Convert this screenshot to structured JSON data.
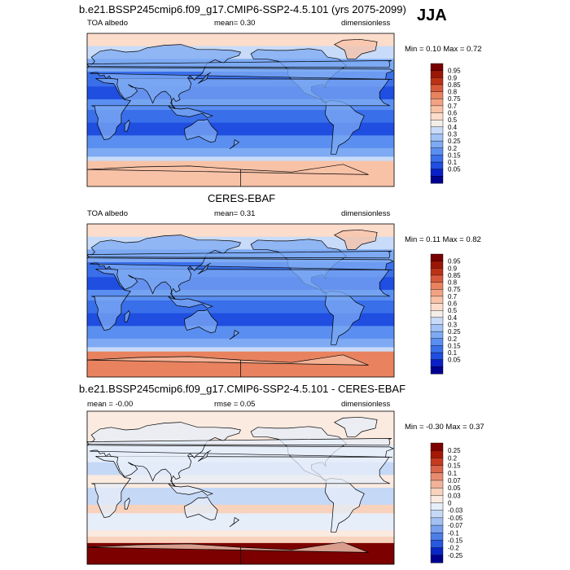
{
  "season": "JJA",
  "palettes": {
    "albedo": [
      "#00008f",
      "#0a1fc8",
      "#1f4ee0",
      "#3a6fea",
      "#5a8ef0",
      "#7eaaf3",
      "#a3c3f6",
      "#c8dbf8",
      "#f4eee8",
      "#fcdccb",
      "#f8c2a7",
      "#f2a283",
      "#e8825f",
      "#d65a3a",
      "#bc3216",
      "#9a1606",
      "#780000"
    ],
    "diff": [
      "#00008f",
      "#0a26c4",
      "#2858de",
      "#4c7ee6",
      "#78a0ec",
      "#a2c0f2",
      "#c5d8f6",
      "#e6eefa",
      "#faeae0",
      "#f8d2bc",
      "#f2b39a",
      "#e88c70",
      "#d96548",
      "#c63a20",
      "#a51806",
      "#7d0000"
    ]
  },
  "panels": [
    {
      "id": "model",
      "title": "b.e21.BSSP245cmip6.f09_g17.CMIP6-SSP2-4.5.101 (yrs 2075-2099)",
      "left_label": "TOA albedo",
      "center_label": "mean=  0.30",
      "right_label": "dimensionless",
      "range_text": "Min =  0.10 Max =  0.72",
      "palette": "albedo",
      "levels": [
        "0.95",
        "0.9",
        "0.85",
        "0.8",
        "0.75",
        "0.7",
        "0.6",
        "0.5",
        "0.4",
        "0.3",
        "0.25",
        "0.2",
        "0.15",
        "0.1",
        "0.05"
      ]
    },
    {
      "id": "obs",
      "title": "CERES-EBAF",
      "left_label": "TOA albedo",
      "center_label": "mean=  0.31",
      "right_label": "dimensionless",
      "range_text": "Min =  0.11 Max =  0.82",
      "palette": "albedo",
      "levels": [
        "0.95",
        "0.9",
        "0.85",
        "0.8",
        "0.75",
        "0.7",
        "0.6",
        "0.5",
        "0.4",
        "0.3",
        "0.25",
        "0.2",
        "0.15",
        "0.1",
        "0.05"
      ]
    },
    {
      "id": "diff",
      "title": "b.e21.BSSP245cmip6.f09_g17.CMIP6-SSP2-4.5.101 - CERES-EBAF",
      "left_label": "mean =  -0.00",
      "center_label": "rmse =  0.05",
      "right_label": "dimensionless",
      "range_text": "Min = -0.30 Max =  0.37",
      "palette": "diff",
      "levels": [
        "0.25",
        "0.2",
        "0.15",
        "0.1",
        "0.07",
        "0.05",
        "0.03",
        "0",
        "-0.03",
        "-0.05",
        "-0.07",
        "-0.1",
        "-0.15",
        "-0.2",
        "-0.25"
      ]
    }
  ]
}
